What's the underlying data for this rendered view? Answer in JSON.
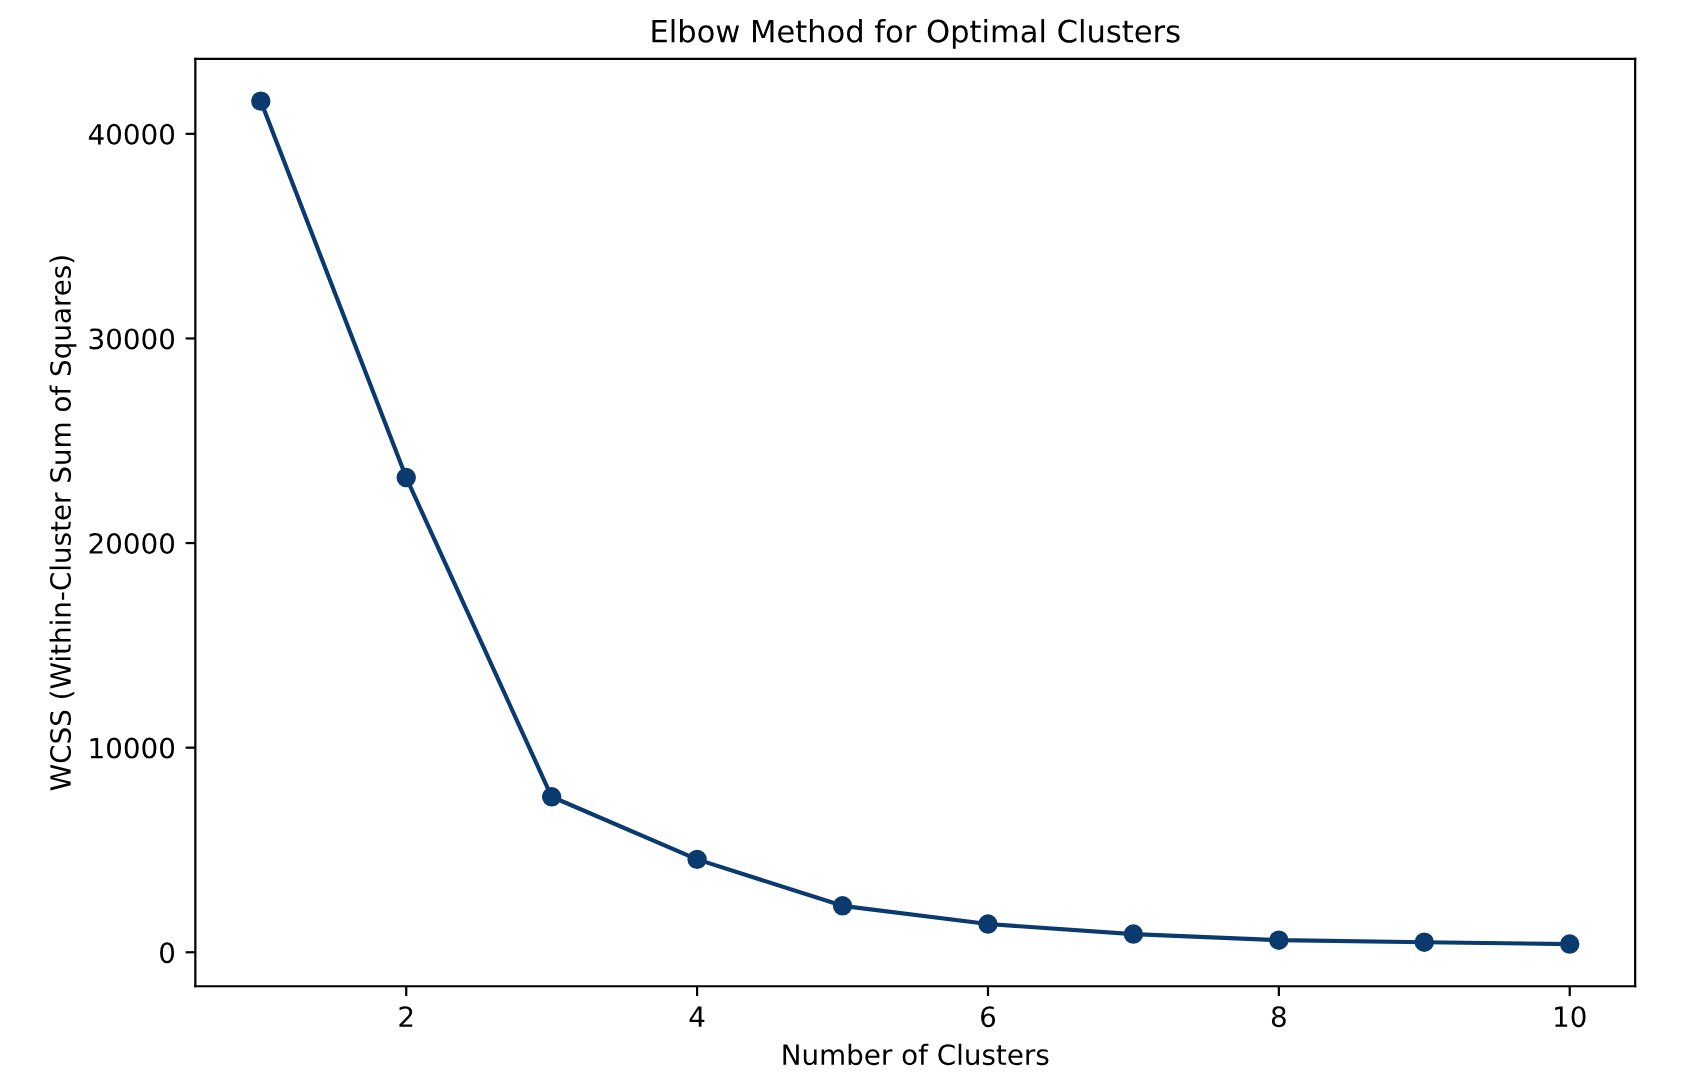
{
  "chart_data": {
    "type": "line",
    "title": "Elbow Method for Optimal Clusters",
    "xlabel": "Number of Clusters",
    "ylabel": "WCSS (Within-Cluster Sum of Squares)",
    "x": [
      1,
      2,
      3,
      4,
      5,
      6,
      7,
      8,
      9,
      10
    ],
    "series": [
      {
        "color": "#0b3a6e",
        "values": [
          41600,
          23200,
          7600,
          4540,
          2270,
          1380,
          890,
          590,
          490,
          400
        ]
      }
    ],
    "xlim": [
      0.55,
      10.45
    ],
    "ylim": [
      -1660,
      43660
    ],
    "xticks": [
      2,
      4,
      6,
      8,
      10
    ],
    "yticks": [
      0,
      10000,
      20000,
      30000,
      40000
    ],
    "marker": "circle",
    "line_style": "solid",
    "grid": false,
    "legend": false
  }
}
